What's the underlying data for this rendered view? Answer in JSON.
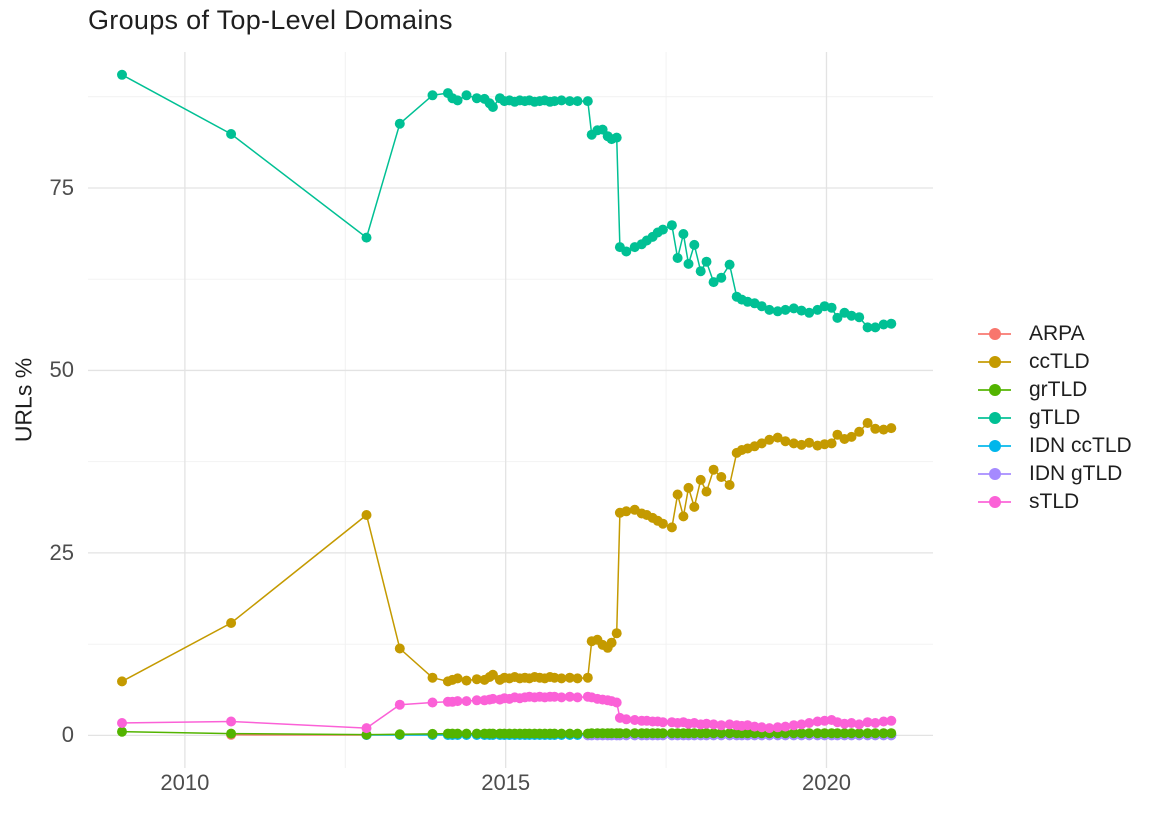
{
  "figure": {
    "title": "Groups of Top-Level Domains",
    "ylabel": "URLs %"
  },
  "theme": {
    "background": "#ffffff",
    "grid_major": "#e3e3e3",
    "grid_minor": "#f1f1f1",
    "axis_text_color": "#4d4d4d",
    "title_color": "#1f1f1f",
    "point_radius": 5,
    "line_width": 1.5
  },
  "legend": {
    "entries": [
      {
        "label": "ARPA",
        "color": "#F8766D"
      },
      {
        "label": "ccTLD",
        "color": "#C49A00"
      },
      {
        "label": "grTLD",
        "color": "#53B400"
      },
      {
        "label": "gTLD",
        "color": "#00C094"
      },
      {
        "label": "IDN ccTLD",
        "color": "#00B6EB"
      },
      {
        "label": "IDN gTLD",
        "color": "#A58AFF"
      },
      {
        "label": "sTLD",
        "color": "#FB61D7"
      }
    ]
  },
  "chart_data": {
    "type": "line",
    "title": "Groups of Top-Level Domains",
    "xlabel": "",
    "ylabel": "URLs %",
    "legend_position": "right",
    "grid": true,
    "xlim": [
      2008.49,
      2021.66
    ],
    "ylim": [
      -4.47,
      93.63
    ],
    "x_major": [
      2010,
      2015,
      2020
    ],
    "x_major_labels": [
      "2010",
      "2015",
      "2020"
    ],
    "x_minor": [
      2012.5,
      2017.5
    ],
    "y_major": [
      0,
      25,
      50,
      75
    ],
    "y_major_labels": [
      "0",
      "25",
      "50",
      "75"
    ],
    "y_minor": [
      12.5,
      37.5,
      62.5,
      87.5
    ],
    "draw_order": [
      "ARPA",
      "IDN ccTLD",
      "IDN gTLD",
      "grTLD",
      "gTLD",
      "ccTLD",
      "sTLD"
    ],
    "x": [
      2009.02,
      2010.72,
      2012.83,
      2013.35,
      2013.86,
      2014.1,
      2014.17,
      2014.25,
      2014.39,
      2014.55,
      2014.67,
      2014.75,
      2014.8,
      2014.91,
      2014.98,
      2015.06,
      2015.14,
      2015.22,
      2015.3,
      2015.37,
      2015.45,
      2015.53,
      2015.61,
      2015.69,
      2015.76,
      2015.87,
      2016.0,
      2016.12,
      2016.28,
      2016.34,
      2016.43,
      2016.51,
      2016.59,
      2016.65,
      2016.73,
      2016.78,
      2016.88,
      2017.01,
      2017.12,
      2017.2,
      2017.29,
      2017.37,
      2017.45,
      2017.59,
      2017.68,
      2017.77,
      2017.85,
      2017.94,
      2018.04,
      2018.13,
      2018.24,
      2018.36,
      2018.49,
      2018.6,
      2018.68,
      2018.77,
      2018.88,
      2018.99,
      2019.11,
      2019.24,
      2019.36,
      2019.49,
      2019.61,
      2019.73,
      2019.86,
      2019.97,
      2020.08,
      2020.17,
      2020.28,
      2020.39,
      2020.51,
      2020.64,
      2020.76,
      2020.89,
      2021.01
    ],
    "series": [
      {
        "name": "ARPA",
        "color": "#F8766D",
        "values": [
          null,
          0.08,
          0.05,
          null,
          null,
          null,
          null,
          null,
          null,
          null,
          null,
          null,
          null,
          null,
          null,
          null,
          null,
          null,
          null,
          null,
          null,
          null,
          null,
          null,
          null,
          null,
          null,
          null,
          null,
          null,
          null,
          null,
          null,
          null,
          null,
          null,
          null,
          null,
          null,
          null,
          null,
          null,
          null,
          null,
          null,
          null,
          null,
          null,
          null,
          null,
          null,
          null,
          null,
          null,
          null,
          null,
          null,
          null,
          null,
          null,
          null,
          null,
          null,
          null,
          null,
          null,
          null,
          null,
          null,
          null,
          null,
          null,
          null,
          null,
          null
        ]
      },
      {
        "name": "ccTLD",
        "color": "#C49A00",
        "values": [
          7.4,
          15.4,
          30.2,
          11.9,
          7.9,
          7.4,
          7.6,
          7.8,
          7.5,
          7.7,
          7.6,
          8.0,
          8.3,
          7.6,
          7.9,
          7.8,
          8.0,
          7.8,
          7.9,
          7.8,
          8.0,
          7.9,
          7.8,
          8.0,
          7.9,
          7.8,
          7.9,
          7.8,
          7.9,
          12.9,
          13.1,
          12.4,
          12.0,
          12.7,
          14.0,
          30.5,
          30.7,
          30.9,
          30.4,
          30.2,
          29.8,
          29.4,
          29.0,
          28.5,
          33.0,
          30.0,
          33.9,
          31.3,
          35.0,
          33.4,
          36.4,
          35.4,
          34.3,
          38.7,
          39.1,
          39.3,
          39.6,
          40.0,
          40.5,
          40.8,
          40.3,
          40.0,
          39.8,
          40.1,
          39.7,
          39.9,
          40.0,
          41.2,
          40.6,
          40.9,
          41.6,
          42.8,
          42.0,
          41.9,
          42.1
        ]
      },
      {
        "name": "grTLD",
        "color": "#53B400",
        "values": [
          0.5,
          0.25,
          0.1,
          0.15,
          0.2,
          0.25,
          0.25,
          0.25,
          0.25,
          0.25,
          0.25,
          0.25,
          0.25,
          0.25,
          0.25,
          0.25,
          0.25,
          0.25,
          0.25,
          0.25,
          0.25,
          0.25,
          0.25,
          0.25,
          0.25,
          0.25,
          0.25,
          0.25,
          0.25,
          0.3,
          0.3,
          0.3,
          0.3,
          0.3,
          0.3,
          0.3,
          0.3,
          0.3,
          0.3,
          0.3,
          0.3,
          0.3,
          0.3,
          0.3,
          0.3,
          0.3,
          0.3,
          0.3,
          0.3,
          0.3,
          0.3,
          0.3,
          0.3,
          0.3,
          0.3,
          0.3,
          0.3,
          0.3,
          0.3,
          0.3,
          0.3,
          0.3,
          0.3,
          0.3,
          0.3,
          0.3,
          0.3,
          0.3,
          0.3,
          0.3,
          0.3,
          0.3,
          0.3,
          0.3,
          0.3
        ]
      },
      {
        "name": "gTLD",
        "color": "#00C094",
        "values": [
          90.5,
          82.4,
          68.2,
          83.8,
          87.7,
          88.0,
          87.3,
          87.0,
          87.7,
          87.3,
          87.2,
          86.6,
          86.1,
          87.3,
          86.9,
          87.0,
          86.8,
          87.0,
          86.9,
          87.0,
          86.8,
          86.9,
          87.0,
          86.8,
          86.9,
          87.0,
          86.9,
          86.9,
          86.9,
          82.3,
          82.9,
          83.0,
          82.1,
          81.7,
          81.9,
          66.9,
          66.3,
          66.9,
          67.3,
          67.8,
          68.3,
          68.9,
          69.3,
          69.9,
          65.4,
          68.7,
          64.6,
          67.2,
          63.6,
          64.9,
          62.1,
          62.7,
          64.5,
          60.1,
          59.7,
          59.4,
          59.2,
          58.8,
          58.3,
          58.1,
          58.3,
          58.5,
          58.2,
          57.9,
          58.3,
          58.8,
          58.6,
          57.2,
          57.9,
          57.5,
          57.3,
          55.9,
          55.9,
          56.3,
          56.4
        ]
      },
      {
        "name": "IDN ccTLD",
        "color": "#00B6EB",
        "values": [
          null,
          null,
          0.05,
          0.05,
          0.05,
          0.05,
          0.05,
          0.05,
          0.05,
          0.05,
          0.05,
          0.05,
          0.05,
          0.05,
          0.05,
          0.05,
          0.05,
          0.05,
          0.05,
          0.05,
          0.05,
          0.05,
          0.05,
          0.05,
          0.05,
          0.05,
          0.05,
          0.05,
          0.05,
          0.05,
          0.05,
          0.05,
          0.05,
          0.05,
          0.05,
          0.05,
          0.05,
          0.05,
          0.05,
          0.05,
          0.05,
          0.05,
          0.05,
          0.05,
          0.05,
          0.05,
          0.05,
          0.05,
          0.05,
          0.05,
          0.05,
          0.05,
          0.05,
          0.05,
          0.05,
          0.05,
          0.05,
          0.05,
          0.05,
          0.05,
          0.05,
          0.05,
          0.05,
          0.05,
          0.05,
          0.05,
          0.05,
          0.05,
          0.05,
          0.05,
          0.05,
          0.05,
          0.05,
          0.05,
          0.05
        ]
      },
      {
        "name": "IDN gTLD",
        "color": "#A58AFF",
        "values": [
          null,
          null,
          null,
          null,
          null,
          null,
          null,
          null,
          null,
          null,
          null,
          null,
          null,
          null,
          null,
          null,
          null,
          null,
          null,
          null,
          null,
          null,
          null,
          null,
          null,
          null,
          null,
          null,
          0.0,
          0.0,
          0.0,
          0.0,
          0.0,
          0.0,
          0.0,
          0.0,
          0.0,
          0.0,
          0.0,
          0.0,
          0.0,
          0.0,
          0.0,
          0.0,
          0.0,
          0.0,
          0.0,
          0.0,
          0.0,
          0.0,
          0.0,
          0.0,
          0.0,
          0.0,
          0.0,
          0.0,
          0.0,
          0.0,
          0.0,
          0.0,
          0.0,
          0.0,
          0.0,
          0.0,
          0.0,
          0.0,
          0.0,
          0.0,
          0.0,
          0.0,
          0.0,
          0.0,
          0.0,
          0.0,
          0.0
        ]
      },
      {
        "name": "sTLD",
        "color": "#FB61D7",
        "values": [
          1.7,
          1.9,
          1.0,
          4.2,
          4.5,
          4.6,
          4.6,
          4.7,
          4.7,
          4.8,
          4.8,
          4.9,
          5.0,
          4.9,
          5.1,
          5.0,
          5.2,
          5.1,
          5.2,
          5.3,
          5.2,
          5.3,
          5.2,
          5.3,
          5.3,
          5.2,
          5.3,
          5.2,
          5.3,
          5.2,
          5.0,
          4.9,
          4.8,
          4.7,
          4.5,
          2.4,
          2.2,
          2.1,
          2.0,
          2.0,
          1.9,
          1.9,
          1.8,
          1.8,
          1.7,
          1.8,
          1.6,
          1.7,
          1.5,
          1.6,
          1.5,
          1.4,
          1.5,
          1.4,
          1.3,
          1.4,
          1.2,
          1.1,
          1.0,
          1.1,
          1.2,
          1.4,
          1.5,
          1.7,
          1.9,
          2.0,
          2.1,
          1.8,
          1.6,
          1.7,
          1.5,
          1.8,
          1.7,
          1.9,
          2.0
        ]
      }
    ]
  }
}
